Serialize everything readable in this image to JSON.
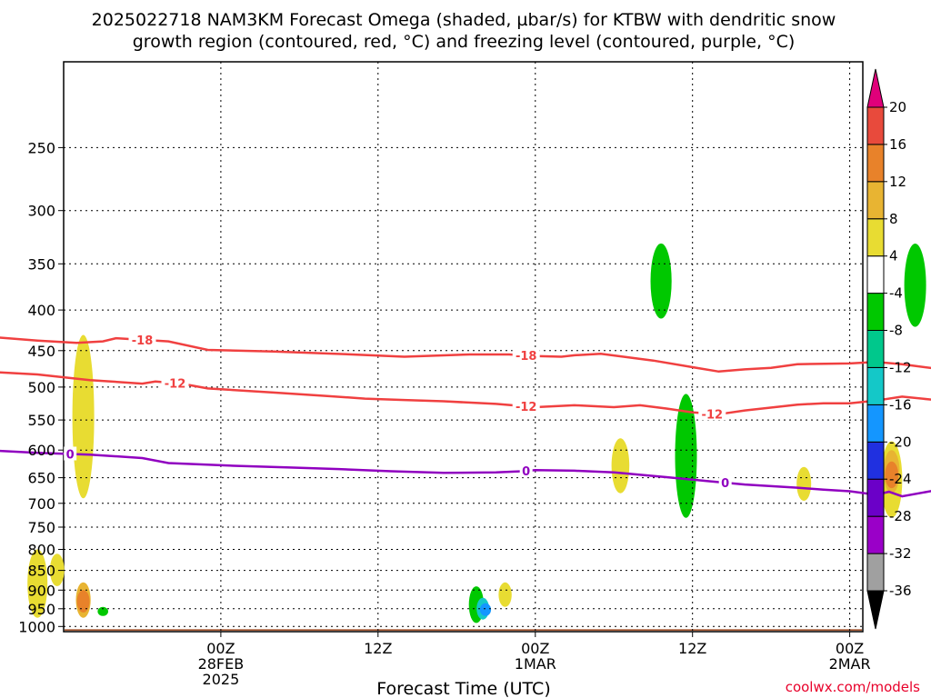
{
  "chart_data": {
    "type": "heatmap",
    "title_lines": [
      "2025022718 NAM3KM Forecast Omega (shaded, µbar/s) for KTBW with dendritic snow",
      "growth region (contoured, red, °C) and freezing level (contoured, purple, °C)"
    ],
    "xlabel": "Forecast Time (UTC)",
    "credit": "coolwx.com/models",
    "x_range_hours": [
      -12,
      49
    ],
    "x_ticks": [
      {
        "hour": 0,
        "lines": [
          "00Z",
          "28FEB",
          "2025"
        ]
      },
      {
        "hour": 12,
        "lines": [
          "12Z"
        ]
      },
      {
        "hour": 24,
        "lines": [
          "00Z",
          "1MAR"
        ]
      },
      {
        "hour": 36,
        "lines": [
          "12Z"
        ]
      },
      {
        "hour": 48,
        "lines": [
          "00Z",
          "2MAR"
        ]
      }
    ],
    "y_axis": {
      "scale": "log",
      "reversed": true,
      "range_hpa": [
        1015,
        195
      ],
      "ticks": [
        250,
        300,
        350,
        400,
        450,
        500,
        550,
        600,
        650,
        700,
        750,
        800,
        850,
        900,
        950,
        1000
      ]
    },
    "colorbar": {
      "levels": [
        -36,
        -32,
        -28,
        -24,
        -20,
        -16,
        -12,
        -8,
        -4,
        4,
        8,
        12,
        16,
        20
      ],
      "colors": [
        "#000000",
        "#a0a0a0",
        "#9a00c8",
        "#6b00c8",
        "#2030e0",
        "#1496ff",
        "#14c8c8",
        "#00c88c",
        "#00c800",
        "#ffffff",
        "#e8dc32",
        "#e8b432",
        "#e8822a",
        "#e84a3c",
        "#e0007a"
      ]
    },
    "contours": [
      {
        "label": "-18",
        "color": "#f04040",
        "points": [
          [
            -18,
            432
          ],
          [
            -14,
            437
          ],
          [
            -11,
            440
          ],
          [
            -9,
            438
          ],
          [
            -8,
            434
          ],
          [
            -4,
            438
          ],
          [
            -1,
            449
          ],
          [
            4,
            451
          ],
          [
            10,
            455
          ],
          [
            14,
            458
          ],
          [
            19,
            455
          ],
          [
            22,
            455
          ],
          [
            24,
            457
          ],
          [
            26,
            458
          ],
          [
            27,
            456
          ],
          [
            29,
            454
          ],
          [
            33,
            463
          ],
          [
            36,
            472
          ],
          [
            38,
            478
          ],
          [
            40,
            475
          ],
          [
            42,
            473
          ],
          [
            44,
            468
          ],
          [
            48,
            467
          ],
          [
            50,
            465
          ],
          [
            52,
            468
          ],
          [
            55,
            475
          ]
        ],
        "label_hours": [
          -6,
          23.3
        ]
      },
      {
        "label": "-12",
        "color": "#f04040",
        "points": [
          [
            -18,
            478
          ],
          [
            -14,
            482
          ],
          [
            -10,
            490
          ],
          [
            -6,
            495
          ],
          [
            -5,
            492
          ],
          [
            -3,
            495
          ],
          [
            -1,
            502
          ],
          [
            4,
            508
          ],
          [
            8,
            513
          ],
          [
            11,
            517
          ],
          [
            14,
            519
          ],
          [
            17,
            521
          ],
          [
            21,
            525
          ],
          [
            24,
            530
          ],
          [
            27,
            527
          ],
          [
            30,
            530
          ],
          [
            32,
            527
          ],
          [
            34,
            532
          ],
          [
            36,
            538
          ],
          [
            38,
            541
          ],
          [
            40,
            535
          ],
          [
            44,
            526
          ],
          [
            46,
            524
          ],
          [
            48,
            524
          ],
          [
            50,
            520
          ],
          [
            52,
            514
          ],
          [
            55,
            520
          ]
        ],
        "label_hours": [
          -3.5,
          23.3,
          37.5
        ]
      },
      {
        "label": "0",
        "color": "#9000c0",
        "points": [
          [
            -18,
            600
          ],
          [
            -14,
            605
          ],
          [
            -10,
            608
          ],
          [
            -6,
            614
          ],
          [
            -4,
            623
          ],
          [
            1,
            628
          ],
          [
            5,
            631
          ],
          [
            9,
            634
          ],
          [
            13,
            638
          ],
          [
            17,
            641
          ],
          [
            21,
            640
          ],
          [
            23,
            638
          ],
          [
            24,
            636
          ],
          [
            27,
            637
          ],
          [
            30,
            640
          ],
          [
            34,
            649
          ],
          [
            37,
            656
          ],
          [
            40,
            663
          ],
          [
            42,
            666
          ],
          [
            44,
            669
          ],
          [
            46,
            673
          ],
          [
            48,
            676
          ],
          [
            50,
            683
          ],
          [
            51,
            677
          ],
          [
            52,
            686
          ],
          [
            55,
            672
          ]
        ],
        "label_hours": [
          -11.5,
          23.3,
          38.5
        ]
      }
    ],
    "omega_features": [
      {
        "hour": -10.5,
        "p_top": 430,
        "p_bot": 690,
        "color": "#e8dc32"
      },
      {
        "hour": -14,
        "p_top": 800,
        "p_bot": 975,
        "color": "#e8dc32"
      },
      {
        "hour": -12.5,
        "p_top": 810,
        "p_bot": 890,
        "color": "#e8dc32"
      },
      {
        "hour": -10.5,
        "p_top": 880,
        "p_bot": 975,
        "color": "#e8b432"
      },
      {
        "hour": -10.5,
        "p_top": 900,
        "p_bot": 960,
        "color": "#e8822a"
      },
      {
        "hour": -9,
        "p_top": 945,
        "p_bot": 970,
        "color": "#00c800"
      },
      {
        "hour": 19.5,
        "p_top": 890,
        "p_bot": 990,
        "color": "#00c800"
      },
      {
        "hour": 20,
        "p_top": 920,
        "p_bot": 980,
        "color": "#14c8c8"
      },
      {
        "hour": 20.2,
        "p_top": 935,
        "p_bot": 970,
        "color": "#1496ff"
      },
      {
        "hour": 21.7,
        "p_top": 880,
        "p_bot": 945,
        "color": "#e8dc32"
      },
      {
        "hour": 30.5,
        "p_top": 580,
        "p_bot": 680,
        "color": "#e8dc32"
      },
      {
        "hour": 33.6,
        "p_top": 330,
        "p_bot": 410,
        "color": "#00c800"
      },
      {
        "hour": 35.5,
        "p_top": 510,
        "p_bot": 730,
        "color": "#00c800"
      },
      {
        "hour": 44.5,
        "p_top": 630,
        "p_bot": 695,
        "color": "#e8dc32"
      },
      {
        "hour": 51.2,
        "p_top": 585,
        "p_bot": 730,
        "color": "#e8dc32"
      },
      {
        "hour": 51.2,
        "p_top": 600,
        "p_bot": 680,
        "color": "#e8b432"
      },
      {
        "hour": 51.2,
        "p_top": 620,
        "p_bot": 670,
        "color": "#e8822a"
      },
      {
        "hour": 53,
        "p_top": 330,
        "p_bot": 420,
        "color": "#00c800"
      }
    ],
    "surface": {
      "color": "#a0522d",
      "p_top": 1015
    }
  }
}
